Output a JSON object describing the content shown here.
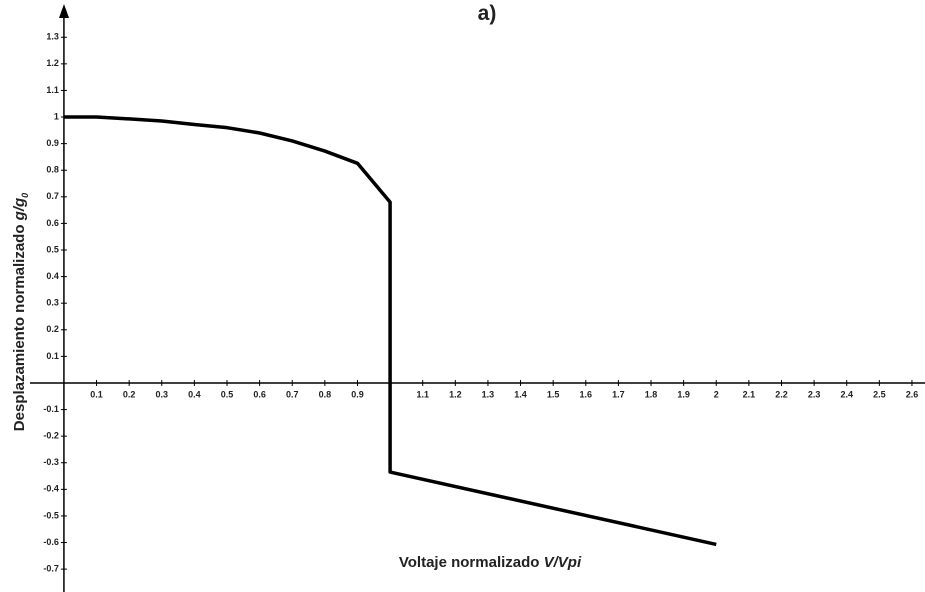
{
  "chart_data": {
    "type": "line",
    "title": "a)",
    "x_label": "Voltaje normalizado",
    "x_label_italic": "V/Vpi",
    "y_label": "Desplazamiento normalizado",
    "y_label_italic": "g/g",
    "y_label_sub": "0",
    "x": [
      0,
      0.1,
      0.2,
      0.3,
      0.4,
      0.5,
      0.6,
      0.7,
      0.8,
      0.9,
      1,
      1,
      2
    ],
    "values": [
      1,
      1,
      0.993,
      0.985,
      0.972,
      0.96,
      0.94,
      0.91,
      0.872,
      0.826,
      0.68,
      -0.335,
      -0.607
    ],
    "color": "#000000",
    "xlim": [
      -0.104,
      2.64
    ],
    "ylim": [
      -0.786,
      1.41
    ],
    "xticks": [
      0.1,
      0.2,
      0.3,
      0.4,
      0.5,
      0.6,
      0.7,
      0.8,
      0.9,
      1.1,
      1.2,
      1.3,
      1.4,
      1.5,
      1.6,
      1.7,
      1.8,
      1.9,
      2,
      2.1,
      2.2,
      2.3,
      2.4,
      2.5,
      2.6
    ],
    "yticks": [
      -0.7,
      -0.6,
      -0.5,
      -0.4,
      -0.3,
      -0.2,
      -0.1,
      0.1,
      0.2,
      0.3,
      0.4,
      0.5,
      0.6,
      0.7,
      0.8,
      0.9,
      1,
      1.1,
      1.2,
      1.3
    ],
    "grid": false
  }
}
